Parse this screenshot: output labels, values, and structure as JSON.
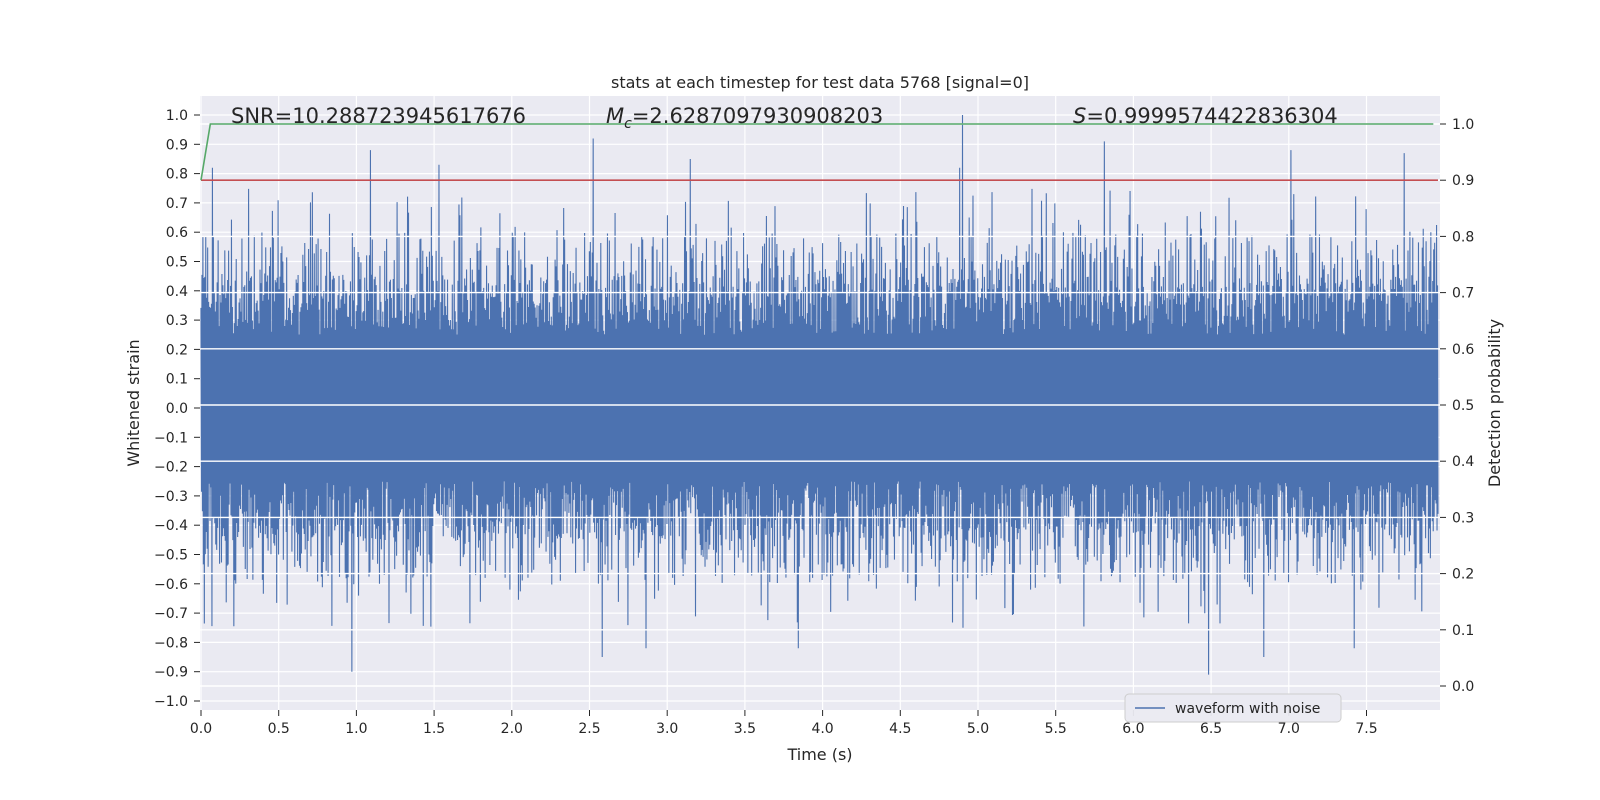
{
  "chart_data": {
    "type": "line",
    "title": "stats at each timestep for test data 5768 [signal=0]",
    "xlabel": "Time (s)",
    "ylabel": "Whitened strain",
    "y2label": "Detection probability",
    "xlim": [
      0.0,
      7.96
    ],
    "ylim": [
      -1.0,
      1.0
    ],
    "y2lim": [
      0.0,
      1.0
    ],
    "xticks": [
      "0.0",
      "0.5",
      "1.0",
      "1.5",
      "2.0",
      "2.5",
      "3.0",
      "3.5",
      "4.0",
      "4.5",
      "5.0",
      "5.5",
      "6.0",
      "6.5",
      "7.0",
      "7.5"
    ],
    "yticks": [
      "1.0",
      "0.9",
      "0.8",
      "0.7",
      "0.6",
      "0.5",
      "0.4",
      "0.3",
      "0.2",
      "0.1",
      "0.0",
      "−0.1",
      "−0.2",
      "−0.3",
      "−0.4",
      "−0.5",
      "−0.6",
      "−0.7",
      "−0.8",
      "−0.9",
      "−1.0"
    ],
    "y2ticks": [
      "1.0",
      "0.9",
      "0.8",
      "0.7",
      "0.6",
      "0.5",
      "0.4",
      "0.3",
      "0.2",
      "0.1",
      "0.0"
    ],
    "annotations": {
      "snr": "SNR=10.288723945617676",
      "mc_symbol": "M",
      "mc_sub": "c",
      "mc_value": "=2.6287097930908203",
      "s_symbol": "S",
      "s_value": "=0.9999574422836304"
    },
    "series": [
      {
        "name": "waveform with noise",
        "color": "#4c72b0",
        "axis": "left",
        "description": "dense whitened-strain noise trace",
        "typical_envelope": [
          -0.45,
          0.5
        ],
        "peaks": [
          {
            "x": 0.07,
            "y": 0.82
          },
          {
            "x": 1.09,
            "y": 0.88
          },
          {
            "x": 1.53,
            "y": 0.83
          },
          {
            "x": 2.52,
            "y": 0.92
          },
          {
            "x": 3.15,
            "y": 0.85
          },
          {
            "x": 4.88,
            "y": 0.82
          },
          {
            "x": 4.9,
            "y": 1.0
          },
          {
            "x": 5.81,
            "y": 0.91
          },
          {
            "x": 7.01,
            "y": 0.88
          },
          {
            "x": 7.74,
            "y": 0.87
          }
        ],
        "troughs": [
          {
            "x": 0.97,
            "y": -0.9
          },
          {
            "x": 2.58,
            "y": -0.85
          },
          {
            "x": 2.86,
            "y": -0.82
          },
          {
            "x": 3.84,
            "y": -0.82
          },
          {
            "x": 4.9,
            "y": -0.75
          },
          {
            "x": 6.48,
            "y": -0.91
          },
          {
            "x": 6.84,
            "y": -0.85
          },
          {
            "x": 7.42,
            "y": -0.82
          }
        ]
      },
      {
        "name": "detection probability",
        "color": "#55a868",
        "axis": "right",
        "x": [
          0.0,
          0.06,
          7.93
        ],
        "y": [
          0.9,
          1.0,
          1.0
        ]
      },
      {
        "name": "threshold",
        "color": "#c44e52",
        "axis": "right",
        "x": [
          0.0,
          7.96
        ],
        "y": [
          0.9,
          0.9
        ]
      }
    ],
    "legend": {
      "location": "lower right",
      "entries": [
        "waveform with noise"
      ]
    }
  }
}
